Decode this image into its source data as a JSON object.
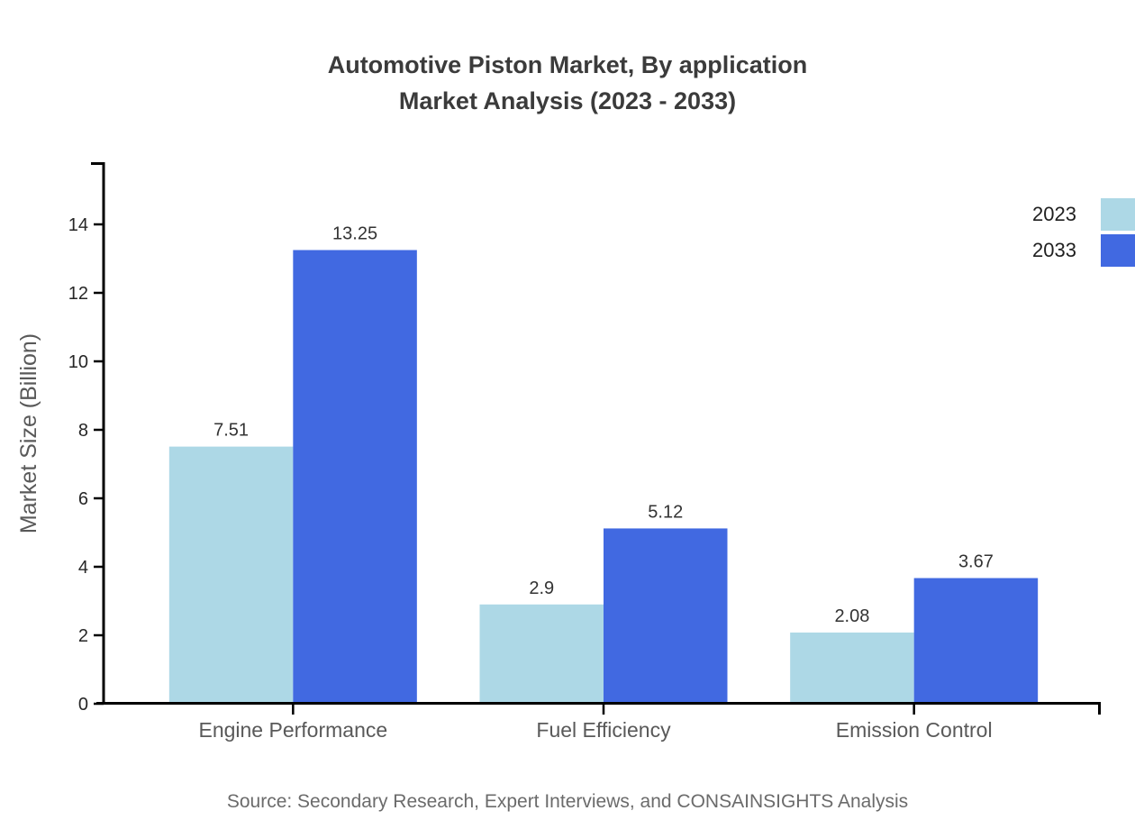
{
  "title": {
    "line1": "Automotive Piston Market, By application",
    "line2": "Market Analysis (2023 - 2033)"
  },
  "source": "Source: Secondary Research, Expert Interviews, and CONSAINSIGHTS Analysis",
  "legend": [
    {
      "label": "2023",
      "color": "#ADD8E6"
    },
    {
      "label": "2033",
      "color": "#4169E1"
    }
  ],
  "colors": {
    "series_2023": "#ADD8E6",
    "series_2033": "#4169E1",
    "axis": "#000000",
    "title_text": "#3b3b3b",
    "tick_text": "#262626",
    "category_text": "#595959",
    "value_label_text": "#333333",
    "source_text": "#6b6b6b",
    "background": "#ffffff"
  },
  "chart_data": {
    "type": "bar",
    "title": "Automotive Piston Market, By application Market Analysis (2023 - 2033)",
    "categories": [
      "Engine Performance",
      "Fuel Efficiency",
      "Emission Control"
    ],
    "series": [
      {
        "name": "2023",
        "color": "#ADD8E6",
        "values": [
          7.51,
          2.9,
          2.08
        ]
      },
      {
        "name": "2033",
        "color": "#4169E1",
        "values": [
          13.25,
          5.12,
          3.67
        ]
      }
    ],
    "xlabel": "",
    "ylabel": "Market Size (Billion)",
    "ylim": [
      0,
      15.8
    ],
    "yticks": [
      0,
      2,
      4,
      6,
      8,
      10,
      12,
      14
    ],
    "grid": false,
    "value_labels": true,
    "legend_position": "top-right"
  }
}
